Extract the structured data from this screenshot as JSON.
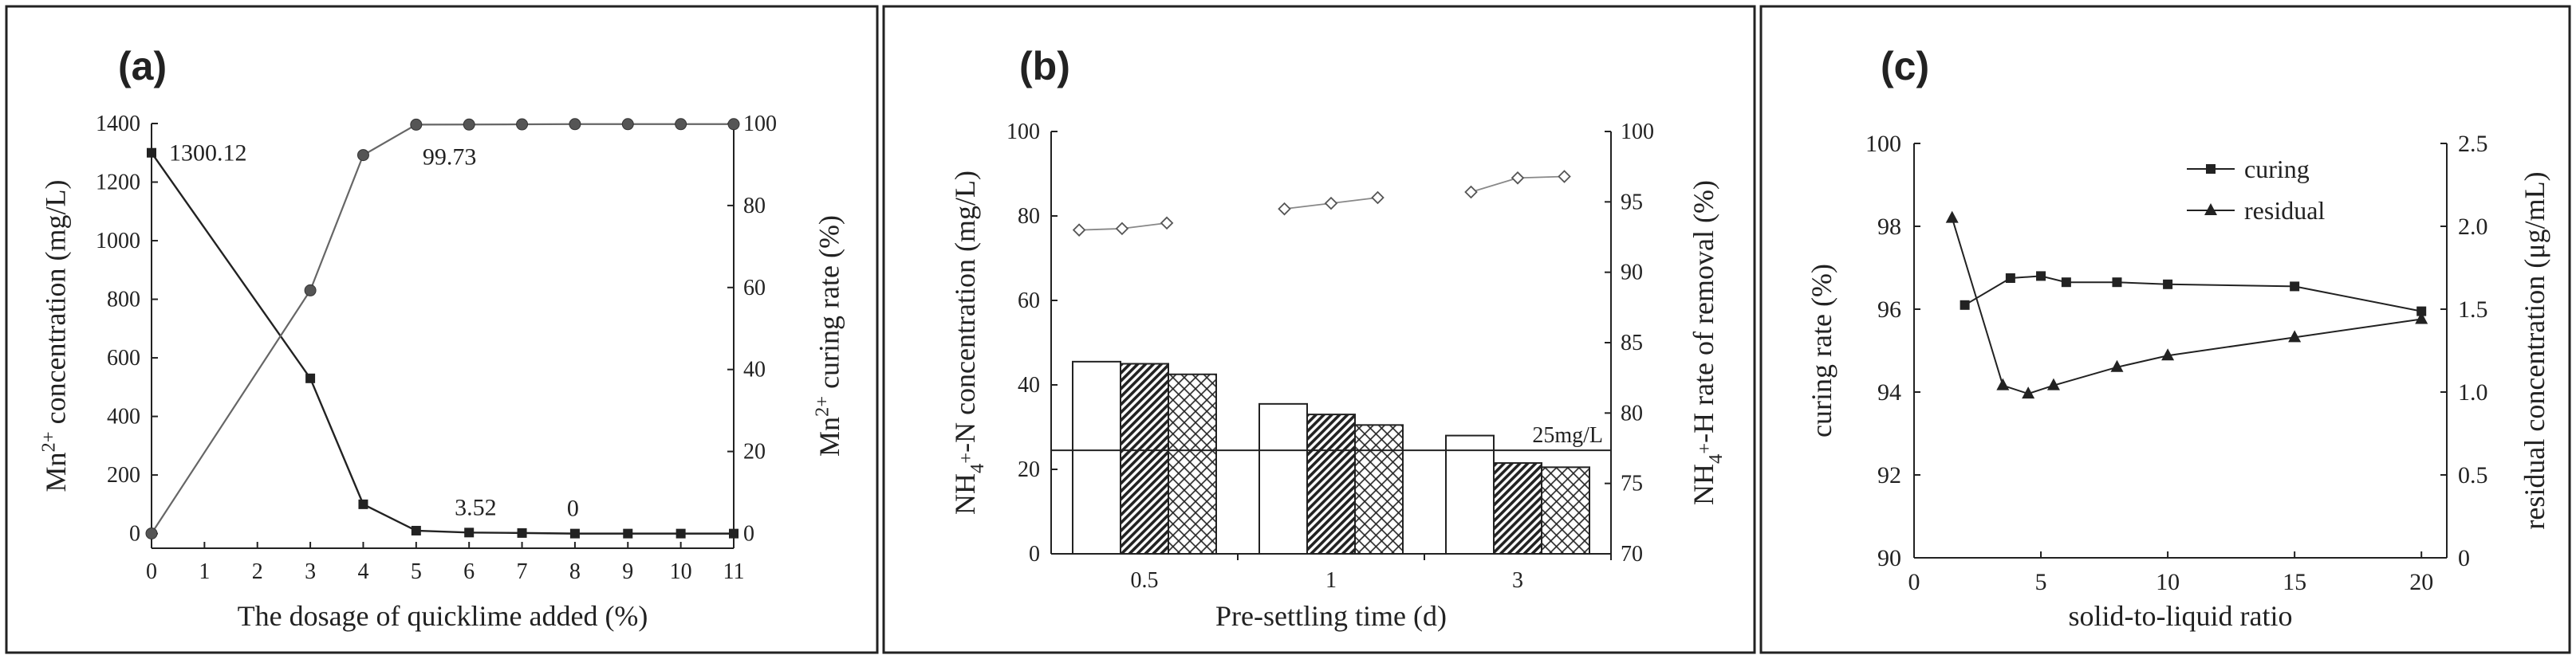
{
  "figure": {
    "panels": [
      {
        "letter": "(a)"
      },
      {
        "letter": "(b)"
      },
      {
        "letter": "(c)"
      }
    ]
  },
  "chart_data": [
    {
      "type": "line",
      "title": "(a)",
      "xlabel": "The dosage of quicklime added (%)",
      "ylabel_html": "Mn<sup>2+</sup> concentration (mg/L)",
      "ylabel_main": "Mn",
      "ylabel_sup": "2+",
      "ylabel_rest": " concentration (mg/L)",
      "ylabel2_main": "Mn",
      "ylabel2_sup": "2+",
      "ylabel2_rest": " curing rate (%)",
      "x": [
        0,
        1,
        2,
        3,
        4,
        5,
        6,
        7,
        8,
        9,
        10,
        11
      ],
      "xticks": [
        "0",
        "1",
        "2",
        "3",
        "4",
        "5",
        "6",
        "7",
        "8",
        "9",
        "10",
        "11"
      ],
      "ylim": [
        -50,
        1400
      ],
      "yticks": [
        "0",
        "200",
        "400",
        "600",
        "800",
        "1000",
        "1200",
        "1400"
      ],
      "y2lim": [
        -3.6,
        100
      ],
      "y2ticks": [
        "0",
        "20",
        "40",
        "60",
        "80",
        "100"
      ],
      "series": [
        {
          "name": "Mn2+ concentration",
          "axis": "left",
          "marker": "square",
          "x": [
            0,
            3,
            4,
            5,
            6,
            7,
            8,
            9,
            10,
            11
          ],
          "values": [
            1300.12,
            530,
            100,
            10,
            3.52,
            2,
            0,
            0,
            0,
            0
          ]
        },
        {
          "name": "Mn2+ curing rate",
          "axis": "right",
          "marker": "circle",
          "x": [
            0,
            3,
            4,
            5,
            6,
            7,
            8,
            9,
            10,
            11
          ],
          "values": [
            0,
            59.3,
            92.3,
            99.73,
            99.75,
            99.8,
            99.85,
            99.85,
            99.85,
            99.85
          ]
        }
      ],
      "annotations": [
        "1300.12",
        "99.73",
        "3.52",
        "0"
      ]
    },
    {
      "type": "bar",
      "title": "(b)",
      "xlabel": "Pre-settling time (d)",
      "ylabel_main": "NH",
      "ylabel_sub": "4",
      "ylabel_sup": "+",
      "ylabel_rest": "-N concentration (mg/L)",
      "ylabel2_main": "NH",
      "ylabel2_sub": "4",
      "ylabel2_sup": "+",
      "ylabel2_rest": "-H rate of removal (%)",
      "categories": [
        "0.5",
        "1",
        "3"
      ],
      "ylim": [
        0,
        100
      ],
      "yticks": [
        "0",
        "20",
        "40",
        "60",
        "80",
        "100"
      ],
      "y2lim": [
        70,
        100
      ],
      "y2ticks": [
        "70",
        "75",
        "80",
        "85",
        "90",
        "95",
        "100"
      ],
      "series": [
        {
          "name": "bar 1",
          "pattern": "white",
          "values": [
            45.5,
            35.5,
            28
          ]
        },
        {
          "name": "bar 2",
          "pattern": "hatched",
          "values": [
            45,
            33,
            21.5
          ]
        },
        {
          "name": "bar 3",
          "pattern": "crosshatch",
          "values": [
            42.5,
            30.5,
            20.5
          ]
        }
      ],
      "removal_series": {
        "name": "removal rate",
        "axis": "right",
        "marker": "diamond",
        "points": [
          [
            0.65,
            93.0
          ],
          [
            0.88,
            93.1
          ],
          [
            1.12,
            93.5
          ],
          [
            1.75,
            94.5
          ],
          [
            2.0,
            94.9
          ],
          [
            2.25,
            95.3
          ],
          [
            2.75,
            95.7
          ],
          [
            3.0,
            96.7
          ],
          [
            3.25,
            96.8
          ]
        ]
      },
      "reference_line": {
        "value": 24.5,
        "label": "25mg/L"
      }
    },
    {
      "type": "line",
      "title": "(c)",
      "xlabel": "solid-to-liquid ratio",
      "ylabel": "curing rate (%)",
      "ylabel2": "residual concentration (μg/mL)",
      "xlim": [
        0,
        21
      ],
      "xticks": [
        "0",
        "5",
        "10",
        "15",
        "20"
      ],
      "ylim": [
        90,
        100
      ],
      "yticks": [
        "90",
        "92",
        "94",
        "96",
        "98",
        "100"
      ],
      "y2lim": [
        0,
        2.5
      ],
      "y2ticks": [
        "0",
        "0.5",
        "1.0",
        "1.5",
        "2.0",
        "2.5"
      ],
      "series": [
        {
          "name": "curing",
          "axis": "left",
          "marker": "square",
          "x": [
            2,
            3.8,
            5,
            6,
            8,
            10,
            15,
            20
          ],
          "values": [
            96.1,
            96.75,
            96.8,
            96.65,
            96.65,
            96.6,
            96.55,
            95.95
          ]
        },
        {
          "name": "residual",
          "axis": "right",
          "marker": "triangle",
          "x": [
            1.5,
            3.5,
            4.5,
            5.5,
            8,
            10,
            15,
            20
          ],
          "values": [
            2.05,
            1.04,
            0.99,
            1.04,
            1.15,
            1.22,
            1.33,
            1.44
          ]
        }
      ],
      "legend": [
        "curing",
        "residual"
      ]
    }
  ]
}
